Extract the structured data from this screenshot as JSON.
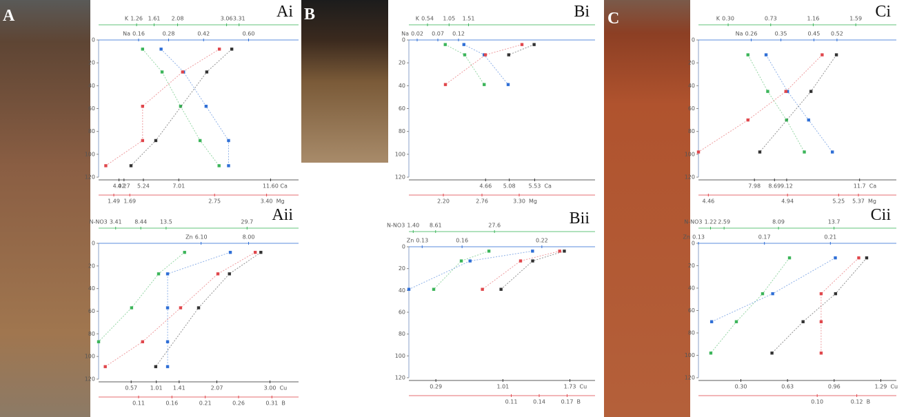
{
  "photos": [
    "A",
    "B",
    "C"
  ],
  "chart_data": [
    {
      "type": "scatter",
      "label": "Ai",
      "ylim": [
        0,
        120
      ],
      "yticks": [
        0,
        20,
        40,
        60,
        80,
        100,
        120
      ],
      "axes": [
        {
          "label": "K",
          "color": "#3cb55a",
          "lim": [
            0.5,
            4.5
          ],
          "ticks": [
            1.26,
            1.61,
            2.08,
            3.06,
            3.31
          ],
          "x": [
            1.38,
            1.77,
            2.14,
            2.53,
            2.91
          ],
          "depth": [
            8,
            28,
            58,
            88,
            110
          ]
        },
        {
          "label": "Na",
          "color": "#2f6fd6",
          "lim": [
            0,
            0.8
          ],
          "ticks": [
            0.16,
            0.28,
            0.42,
            {
              "value": 0.6,
              "label": "0.60"
            }
          ],
          "x": [
            0.25,
            0.34,
            0.43,
            0.52,
            0.52
          ],
          "depth": [
            8,
            28,
            58,
            88,
            110
          ]
        },
        {
          "label": "Ca",
          "color": "#333333",
          "lim": [
            3,
            13
          ],
          "ticks": [
            4.02,
            4.27,
            5.24,
            7.01,
            {
              "value": 11.6,
              "label": "11.60"
            }
          ],
          "x": [
            9.66,
            8.41,
            5.86,
            4.62
          ],
          "depth": [
            8,
            28,
            88,
            110
          ]
        },
        {
          "label": "Mg",
          "color": "#e0474c",
          "lim": [
            1.3,
            3.8
          ],
          "ticks": [
            1.49,
            1.69,
            2.75,
            {
              "value": 3.4,
              "label": "3.40"
            }
          ],
          "x": [
            2.81,
            2.35,
            1.85,
            1.85,
            1.39
          ],
          "depth": [
            8,
            28,
            58,
            88,
            110
          ]
        }
      ]
    },
    {
      "type": "scatter",
      "label": "Aii",
      "ylim": [
        0,
        120
      ],
      "yticks": [
        0,
        20,
        40,
        60,
        80,
        100,
        120
      ],
      "axes": [
        {
          "label": "N-NO3",
          "color": "#3cb55a",
          "lim": [
            0,
            40
          ],
          "ticks": [
            3.41,
            8.44,
            13.5,
            29.7
          ],
          "x": [
            17.2,
            12,
            6.6,
            0
          ],
          "depth": [
            8,
            27,
            57,
            87
          ]
        },
        {
          "label": "Zn",
          "color": "#2f6fd6",
          "lim": [
            2,
            10
          ],
          "ticks": [
            {
              "value": 6.1,
              "label": "6.10"
            },
            {
              "value": 8,
              "label": "8.00"
            }
          ],
          "x": [
            7.27,
            4.76,
            4.76,
            4.76,
            4.76
          ],
          "depth": [
            8,
            27,
            57,
            87,
            109
          ]
        },
        {
          "label": "Cu",
          "color": "#333333",
          "lim": [
            0,
            3.5
          ],
          "ticks": [
            0.57,
            1.01,
            1.41,
            2.07,
            {
              "value": 3,
              "label": "3.00"
            }
          ],
          "x": [
            2.84,
            2.29,
            1.75,
            1
          ],
          "depth": [
            8,
            27,
            57,
            109
          ]
        },
        {
          "label": "B",
          "color": "#e0474c",
          "lim": [
            0.05,
            0.35
          ],
          "ticks": [
            0.11,
            0.16,
            0.21,
            0.26,
            0.31
          ],
          "x": [
            0.285,
            0.229,
            0.173,
            0.116,
            0.06
          ],
          "depth": [
            8,
            27,
            57,
            87,
            109
          ]
        }
      ]
    },
    {
      "type": "scatter",
      "label": "Bi",
      "ylim": [
        0,
        120
      ],
      "yticks": [
        0,
        20,
        40,
        60,
        80,
        100,
        120
      ],
      "axes": [
        {
          "label": "K",
          "color": "#3cb55a",
          "lim": [
            0.1,
            4.5
          ],
          "ticks": [
            0.54,
            1.05,
            1.51
          ],
          "x": [
            0.96,
            1.42,
            1.88
          ],
          "depth": [
            4,
            13,
            39
          ]
        },
        {
          "label": "Na",
          "color": "#2f6fd6",
          "lim": [
            0,
            0.45
          ],
          "ticks": [
            0.02,
            0.07,
            0.12
          ],
          "x": [
            0.133,
            0.182,
            0.24
          ],
          "depth": [
            4,
            13,
            39
          ]
        },
        {
          "label": "Ca",
          "color": "#333333",
          "lim": [
            3.3,
            6.6
          ],
          "ticks": [
            4.66,
            5.08,
            5.53
          ],
          "x": [
            5.52,
            5.07
          ],
          "depth": [
            4,
            13
          ]
        },
        {
          "label": "Mg",
          "color": "#e0474c",
          "lim": [
            1.7,
            4.4
          ],
          "ticks": [
            {
              "value": 2.2,
              "label": "2.20"
            },
            2.76,
            {
              "value": 3.3,
              "label": "3.30"
            }
          ],
          "x": [
            3.34,
            2.81,
            2.23
          ],
          "depth": [
            4,
            13,
            39
          ]
        }
      ]
    },
    {
      "type": "scatter",
      "label": "Bii",
      "ylim": [
        0,
        120
      ],
      "yticks": [
        0,
        20,
        40,
        60,
        80,
        100,
        120
      ],
      "axes": [
        {
          "label": "N-NO3",
          "color": "#3cb55a",
          "lim": [
            0,
            60
          ],
          "ticks": [
            {
              "value": 1.4,
              "label": "1.40"
            },
            8.61,
            27.6
          ],
          "x": [
            25.8,
            16.9,
            8
          ],
          "depth": [
            4,
            13,
            39
          ]
        },
        {
          "label": "Zn",
          "color": "#2f6fd6",
          "lim": [
            0.12,
            0.26
          ],
          "ticks": [
            0.13,
            0.16,
            0.22
          ],
          "x": [
            0.213,
            0.166,
            0.12
          ],
          "depth": [
            4,
            13,
            39
          ]
        },
        {
          "label": "Cu",
          "color": "#333333",
          "lim": [
            0,
            2
          ],
          "ticks": [
            0.29,
            1.01,
            1.73
          ],
          "x": [
            1.67,
            1.33,
            0.99
          ],
          "depth": [
            4,
            13,
            39
          ]
        },
        {
          "label": "B",
          "color": "#e0474c",
          "lim": [
            0,
            0.2
          ],
          "ticks": [
            0.11,
            0.14,
            0.17
          ],
          "x": [
            0.162,
            0.12,
            0.079
          ],
          "depth": [
            4,
            13,
            39
          ]
        }
      ]
    },
    {
      "type": "scatter",
      "label": "Ci",
      "ylim": [
        0,
        120
      ],
      "yticks": [
        0,
        20,
        40,
        60,
        80,
        100,
        120
      ],
      "axes": [
        {
          "label": "K",
          "color": "#3cb55a",
          "lim": [
            0,
            2
          ],
          "ticks": [
            {
              "value": 0.3,
              "label": "0.30"
            },
            0.73,
            1.16,
            1.59
          ],
          "x": [
            0.5,
            0.7,
            0.89,
            1.07
          ],
          "depth": [
            13,
            45,
            70,
            98
          ]
        },
        {
          "label": "Na",
          "color": "#2f6fd6",
          "lim": [
            0.1,
            0.7
          ],
          "ticks": [
            0.26,
            0.35,
            0.45,
            0.52
          ],
          "x": [
            0.305,
            0.37,
            0.434,
            0.506
          ],
          "depth": [
            13,
            45,
            70,
            98
          ]
        },
        {
          "label": "Ca",
          "color": "#333333",
          "lim": [
            6,
            13
          ],
          "ticks": [
            7.98,
            8.69,
            9.12,
            11.7
          ],
          "x": [
            10.88,
            9.98,
            8.17
          ],
          "depth": [
            13,
            45,
            98
          ]
        },
        {
          "label": "Mg",
          "color": "#e0474c",
          "lim": [
            4.4,
            5.6
          ],
          "ticks": [
            4.46,
            4.94,
            5.25,
            5.37
          ],
          "x": [
            5.15,
            4.93,
            4.7,
            4.4
          ],
          "depth": [
            13,
            45,
            70,
            98
          ]
        }
      ]
    },
    {
      "type": "scatter",
      "label": "Cii",
      "ylim": [
        0,
        120
      ],
      "yticks": [
        0,
        20,
        40,
        60,
        80,
        100,
        120
      ],
      "axes": [
        {
          "label": "N-NO3",
          "color": "#3cb55a",
          "lim": [
            0,
            20
          ],
          "ticks": [
            1.22,
            2.59,
            8.09,
            13.7
          ],
          "x": [
            9.2,
            6.48,
            3.83,
            1.25
          ],
          "depth": [
            13,
            45,
            70,
            98
          ]
        },
        {
          "label": "Zn",
          "color": "#2f6fd6",
          "lim": [
            0.13,
            0.25
          ],
          "ticks": [
            0.13,
            0.17,
            0.21
          ],
          "x": [
            0.213,
            0.175,
            0.138
          ],
          "depth": [
            13,
            45,
            70
          ]
        },
        {
          "label": "Cu",
          "color": "#333333",
          "lim": [
            0,
            1.4
          ],
          "ticks": [
            {
              "value": 0.3,
              "label": "0.30"
            },
            0.63,
            0.96,
            1.29
          ],
          "x": [
            1.19,
            0.97,
            0.74,
            0.52
          ],
          "depth": [
            13,
            45,
            70,
            98
          ]
        },
        {
          "label": "B",
          "color": "#e0474c",
          "lim": [
            0.04,
            0.14
          ],
          "ticks": [
            {
              "value": 0.1,
              "label": "0.10"
            },
            0.12
          ],
          "x": [
            0.121,
            0.102,
            0.102,
            0.102
          ],
          "depth": [
            13,
            45,
            70,
            98
          ]
        }
      ]
    }
  ]
}
